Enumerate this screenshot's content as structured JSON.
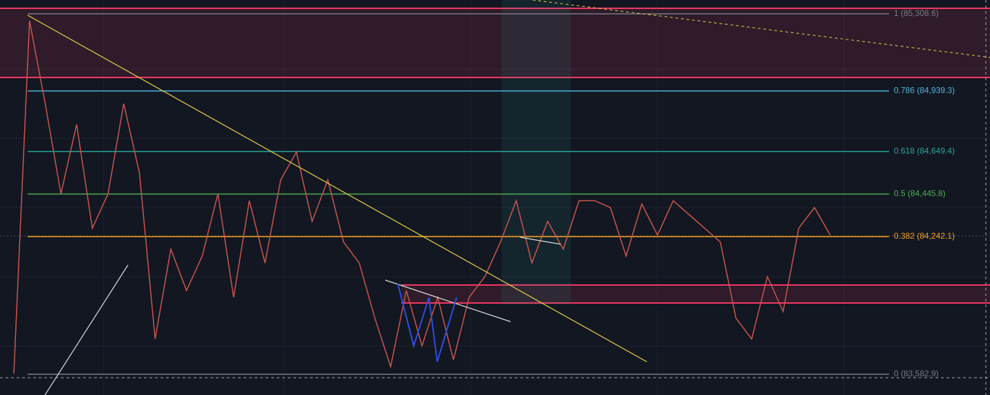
{
  "chart_data": {
    "type": "fibonacci",
    "ylim": [
      83483.5,
      85374.8
    ],
    "levels": [
      {
        "value": 85308.6,
        "label": "1 (85,308.6)",
        "color": "#787b86"
      },
      {
        "value": 84939.3,
        "label": "0.786 (84,939.3)",
        "color": "#4cb8de"
      },
      {
        "value": 84649.4,
        "label": "0.618 (84,649.4)",
        "color": "#26a69a"
      },
      {
        "value": 84445.8,
        "label": "0.5 (84,445.8)",
        "color": "#4caf50"
      },
      {
        "value": 84242.1,
        "label": "0.382 (84,242.1)",
        "color": "#f7a21b"
      },
      {
        "value": 83582.9,
        "label": "0 (83,582.9)",
        "color": "#787b86"
      }
    ],
    "price": {
      "color": "#c9574f",
      "values": [
        83586,
        85275,
        84878,
        84447,
        84779,
        84282,
        84447,
        84878,
        84547,
        83752,
        84182,
        83984,
        84149,
        84447,
        83951,
        84414,
        84116,
        84514,
        84646,
        84315,
        84514,
        84216,
        84116,
        83851,
        83619,
        83984,
        83719,
        83951,
        83652,
        83951,
        84050,
        84216,
        84414,
        84116,
        84315,
        84182,
        84414,
        84414,
        84381,
        84149,
        84398,
        84249,
        84414,
        84348,
        84282,
        84216,
        83851,
        83752,
        84050,
        83884,
        84282,
        84381,
        84249
      ]
    }
  }
}
